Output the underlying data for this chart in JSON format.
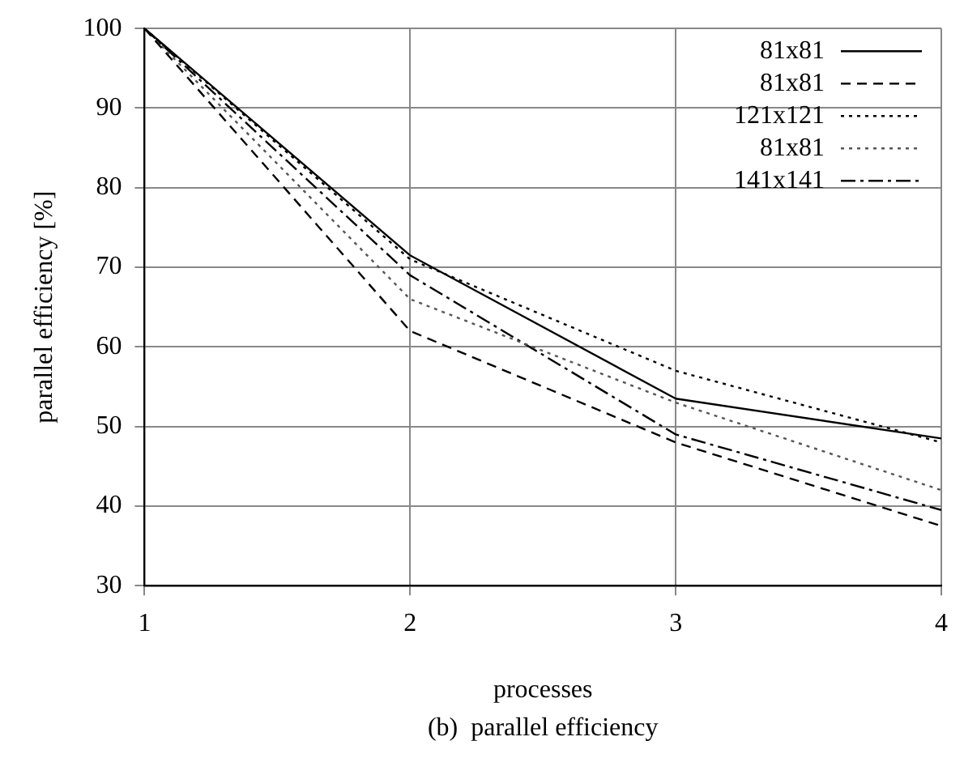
{
  "chart_data": {
    "type": "line",
    "xlabel": "processes",
    "ylabel": "parallel efficiency [%]",
    "annotations": [
      "(b)  parallel efficiency"
    ],
    "x": [
      1,
      2,
      3,
      4
    ],
    "xlim": [
      1,
      4
    ],
    "xticks": [
      1,
      2,
      3,
      4
    ],
    "ylim": [
      30,
      100
    ],
    "yticks": [
      30,
      40,
      50,
      60,
      70,
      80,
      90,
      100
    ],
    "grid": true,
    "legend": "top right",
    "marker": "none",
    "series": [
      {
        "name": "81x81",
        "color": "#000000",
        "line_style": "solid",
        "values": [
          100,
          71.5,
          53.5,
          48.5
        ]
      },
      {
        "name": "81x81",
        "color": "#000000",
        "line_style": "dashed",
        "values": [
          100,
          62,
          48,
          37.5
        ]
      },
      {
        "name": "121x121",
        "color": "#000000",
        "line_style": "dotted",
        "values": [
          100,
          71,
          57,
          48
        ]
      },
      {
        "name": "81x81",
        "color": "#555555",
        "line_style": "dotted",
        "values": [
          100,
          66,
          53,
          42
        ]
      },
      {
        "name": "141x141",
        "color": "#000000",
        "line_style": "dashdot",
        "values": [
          100,
          69,
          49,
          39.5
        ]
      }
    ]
  }
}
